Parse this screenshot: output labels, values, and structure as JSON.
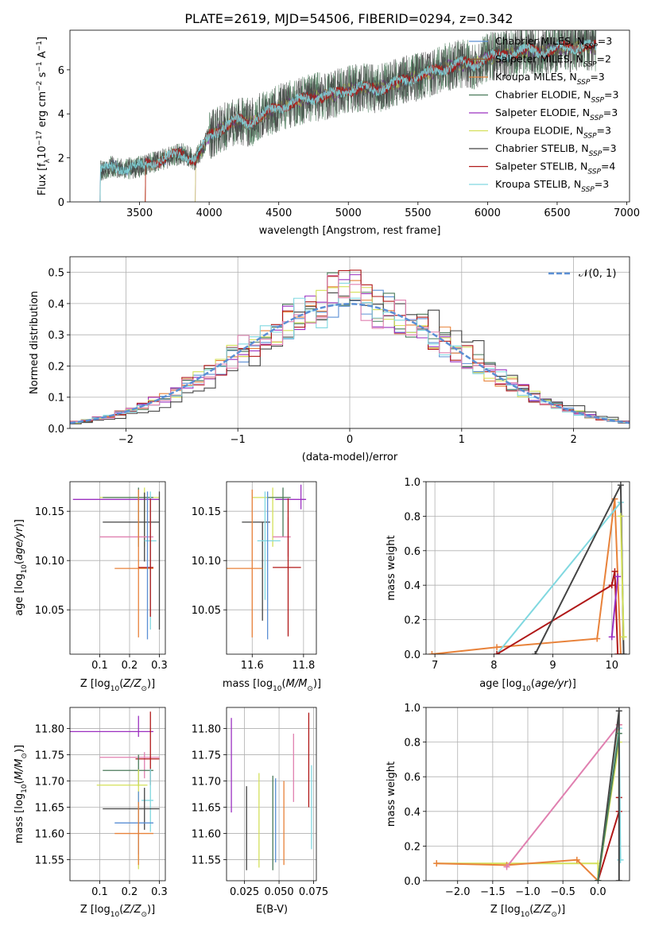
{
  "figure": {
    "title": "PLATE=2619, MJD=54506, FIBERID=0294, z=0.342"
  },
  "colors": {
    "Chabrier MILES": "#5b8fd4",
    "Salpeter MILES": "#8b5a3c",
    "Kroupa MILES": "#e8823a",
    "Chabrier ELODIE": "#4a7a5a",
    "Salpeter ELODIE": "#9b30c0",
    "Kroupa ELODIE": "#d4e05a",
    "Chabrier STELIB": "#444444",
    "Salpeter STELIB": "#b01818",
    "Kroupa STELIB": "#80d8e0",
    "Pink": "#e080b0",
    "Gauss": "#5b8fd4"
  },
  "chart_data": [
    {
      "id": "spectrum",
      "type": "line",
      "xlabel": "wavelength [Angstrom, rest frame]",
      "ylabel": "Flux [f_λ 10^-17 erg cm^-2 s^-1 A^-1]",
      "xlim": [
        3000,
        7020
      ],
      "ylim": [
        0,
        7.8
      ],
      "xticks": [
        3500,
        4000,
        4500,
        5000,
        5500,
        6000,
        6500,
        7000
      ],
      "yticks": [
        0,
        2,
        4,
        6
      ],
      "grid": false,
      "legend_position": "upper-right",
      "legend": [
        {
          "label": "Chabrier MILES, N",
          "sub": "SSP",
          "suffix": "=3",
          "color_key": "Chabrier MILES"
        },
        {
          "label": "Salpeter MILES, N",
          "sub": "SSP",
          "suffix": "=2",
          "color_key": "Salpeter MILES"
        },
        {
          "label": "Kroupa MILES, N",
          "sub": "SSP",
          "suffix": "=3",
          "color_key": "Kroupa MILES"
        },
        {
          "label": "Chabrier ELODIE, N",
          "sub": "SSP",
          "suffix": "=3",
          "color_key": "Chabrier ELODIE"
        },
        {
          "label": "Salpeter ELODIE, N",
          "sub": "SSP",
          "suffix": "=3",
          "color_key": "Salpeter ELODIE"
        },
        {
          "label": "Kroupa ELODIE, N",
          "sub": "SSP",
          "suffix": "=3",
          "color_key": "Kroupa ELODIE"
        },
        {
          "label": "Chabrier STELIB, N",
          "sub": "SSP",
          "suffix": "=3",
          "color_key": "Chabrier STELIB"
        },
        {
          "label": "Salpeter STELIB, N",
          "sub": "SSP",
          "suffix": "=4",
          "color_key": "Salpeter STELIB"
        },
        {
          "label": "Kroupa STELIB, N",
          "sub": "SSP",
          "suffix": "=3",
          "color_key": "Kroupa STELIB"
        }
      ],
      "continuum": [
        [
          3210,
          0
        ],
        [
          3215,
          1.4
        ],
        [
          3300,
          1.6
        ],
        [
          3400,
          1.5
        ],
        [
          3500,
          1.6
        ],
        [
          3600,
          1.8
        ],
        [
          3700,
          2.0
        ],
        [
          3800,
          2.2
        ],
        [
          3900,
          1.9
        ],
        [
          4000,
          3.0
        ],
        [
          4100,
          3.4
        ],
        [
          4200,
          3.7
        ],
        [
          4300,
          3.6
        ],
        [
          4400,
          4.0
        ],
        [
          4500,
          4.3
        ],
        [
          4600,
          4.5
        ],
        [
          4700,
          4.7
        ],
        [
          4800,
          4.8
        ],
        [
          4900,
          4.9
        ],
        [
          5000,
          5.1
        ],
        [
          5100,
          5.2
        ],
        [
          5200,
          5.1
        ],
        [
          5300,
          5.3
        ],
        [
          5400,
          5.5
        ],
        [
          5500,
          5.7
        ],
        [
          5600,
          5.9
        ],
        [
          5700,
          6.1
        ],
        [
          5800,
          6.3
        ],
        [
          5900,
          6.2
        ],
        [
          6000,
          6.6
        ],
        [
          6100,
          6.6
        ],
        [
          6200,
          6.8
        ],
        [
          6300,
          6.9
        ],
        [
          6400,
          6.8
        ],
        [
          6500,
          7.0
        ],
        [
          6600,
          7.0
        ],
        [
          6700,
          7.1
        ],
        [
          6780,
          7.0
        ],
        [
          6785,
          0
        ]
      ]
    },
    {
      "id": "residuals",
      "type": "histogram",
      "xlabel": "(data-model)/error",
      "ylabel": "Normed distribution",
      "xlim": [
        -2.5,
        2.5
      ],
      "ylim": [
        0,
        0.55
      ],
      "xticks": [
        -2,
        -1,
        0,
        1,
        2
      ],
      "yticks": [
        0.0,
        0.1,
        0.2,
        0.3,
        0.4,
        0.5
      ],
      "grid": true,
      "legend_position": "upper-right",
      "legend": {
        "label": "𝒩(0, 1)",
        "color_key": "Gauss",
        "style": "dashed"
      },
      "bin_width": 0.1
    },
    {
      "id": "Z-age",
      "type": "errorbar",
      "xlabel": "Z [log10(Z/Z☉)]",
      "ylabel": "age [log10(age/yr)]",
      "xlim": [
        0.0,
        0.32
      ],
      "ylim": [
        10.005,
        10.18
      ],
      "xticks": [
        0.1,
        0.2,
        0.3
      ],
      "yticks": [
        10.05,
        10.1,
        10.15
      ],
      "grid": true,
      "points": [
        {
          "color_key": "Salpeter ELODIE",
          "x": 0.23,
          "xerr": [
            0.22,
            0.07
          ],
          "y": 10.162,
          "yerr": [
            0.002,
            0.002
          ]
        },
        {
          "color_key": "Kroupa ELODIE",
          "x": 0.25,
          "xerr": [
            0.15,
            0.05
          ],
          "y": 10.164,
          "yerr": [
            0.05,
            0.01
          ]
        },
        {
          "color_key": "Chabrier ELODIE",
          "x": 0.23,
          "xerr": [
            0.12,
            0.05
          ],
          "y": 10.164,
          "yerr": [
            0.05,
            0.01
          ]
        },
        {
          "color_key": "Chabrier STELIB",
          "x": 0.25,
          "xerr": [
            0.14,
            0.05
          ],
          "y": 10.139,
          "yerr": [
            0.04,
            0.03
          ]
        },
        {
          "color_key": "Pink",
          "x": 0.27,
          "xerr": [
            0.17,
            0.01
          ],
          "y": 10.124,
          "yerr": [
            0.04,
            0.03
          ]
        },
        {
          "color_key": "Kroupa STELIB",
          "x": 0.27,
          "xerr": [
            0.02,
            0.02
          ],
          "y": 10.12,
          "yerr": [
            0.09,
            0.05
          ]
        },
        {
          "color_key": "Kroupa MILES",
          "x": 0.23,
          "xerr": [
            0.08,
            0.05
          ],
          "y": 10.092,
          "yerr": [
            0.07,
            0.08
          ]
        },
        {
          "color_key": "Salpeter STELIB",
          "x": 0.27,
          "xerr": [
            0.04,
            0.01
          ],
          "y": 10.093,
          "yerr": [
            0.05,
            0.07
          ]
        },
        {
          "color_key": "Chabrier MILES",
          "x": 0.26,
          "xerr": [
            0.0,
            0.0
          ],
          "y": 10.09,
          "yerr": [
            0.07,
            0.08
          ]
        },
        {
          "color_key": "Chabrier STELIB",
          "x": 0.3,
          "xerr": [
            0.0,
            0.0
          ],
          "y": 10.1,
          "yerr": [
            0.07,
            0.07
          ]
        }
      ]
    },
    {
      "id": "mass-age",
      "type": "errorbar",
      "xlabel": "mass [log10(M/M☉)]",
      "ylabel": "",
      "xlim": [
        11.5,
        11.85
      ],
      "ylim": [
        10.005,
        10.18
      ],
      "xticks": [
        11.6,
        11.8
      ],
      "yticks": [
        10.05,
        10.1,
        10.15
      ],
      "grid": true,
      "points": [
        {
          "color_key": "Salpeter ELODIE",
          "x": 11.79,
          "xerr": [
            0.1,
            0.02
          ],
          "y": 10.162,
          "yerr": [
            0.01,
            0.015
          ]
        },
        {
          "color_key": "Kroupa ELODIE",
          "x": 11.68,
          "xerr": [
            0.08,
            0.05
          ],
          "y": 10.164,
          "yerr": [
            0.05,
            0.01
          ]
        },
        {
          "color_key": "Chabrier ELODIE",
          "x": 11.72,
          "xerr": [
            0.06,
            0.03
          ],
          "y": 10.164,
          "yerr": [
            0.04,
            0.01
          ]
        },
        {
          "color_key": "Chabrier STELIB",
          "x": 11.64,
          "xerr": [
            0.08,
            0.03
          ],
          "y": 10.139,
          "yerr": [
            0.1,
            0.0
          ]
        },
        {
          "color_key": "Pink",
          "x": 11.74,
          "xerr": [
            0.06,
            0.01
          ],
          "y": 10.124,
          "yerr": [
            0.02,
            0.02
          ]
        },
        {
          "color_key": "Kroupa STELIB",
          "x": 11.65,
          "xerr": [
            0.03,
            0.06
          ],
          "y": 10.12,
          "yerr": [
            0.06,
            0.05
          ]
        },
        {
          "color_key": "Kroupa MILES",
          "x": 11.6,
          "xerr": [
            0.1,
            0.04
          ],
          "y": 10.092,
          "yerr": [
            0.07,
            0.08
          ]
        },
        {
          "color_key": "Salpeter STELIB",
          "x": 11.74,
          "xerr": [
            0.06,
            0.05
          ],
          "y": 10.093,
          "yerr": [
            0.07,
            0.07
          ]
        },
        {
          "color_key": "Chabrier MILES",
          "x": 11.66,
          "xerr": [
            0.0,
            0.0
          ],
          "y": 10.09,
          "yerr": [
            0.07,
            0.08
          ]
        }
      ]
    },
    {
      "id": "age-weight",
      "type": "line",
      "xlabel": "age [log10(age/yr)]",
      "ylabel": "mass weight",
      "xlim": [
        6.85,
        10.3
      ],
      "ylim": [
        0.0,
        1.0
      ],
      "xticks": [
        7,
        8,
        9,
        10
      ],
      "yticks": [
        0.0,
        0.2,
        0.4,
        0.6,
        0.8,
        1.0
      ],
      "grid": true,
      "series": [
        {
          "color_key": "Kroupa MILES",
          "x": [
            6.95,
            8.05,
            9.75,
            10.05,
            10.15
          ],
          "y": [
            0.0,
            0.04,
            0.09,
            0.9,
            0.0
          ]
        },
        {
          "color_key": "Kroupa STELIB",
          "x": [
            8.05,
            10.15,
            10.2
          ],
          "y": [
            0.0,
            0.88,
            0.1
          ]
        },
        {
          "color_key": "Salpeter STELIB",
          "x": [
            8.05,
            10.0,
            10.05,
            10.1
          ],
          "y": [
            0.0,
            0.4,
            0.48,
            0.0
          ]
        },
        {
          "color_key": "Chabrier STELIB",
          "x": [
            8.7,
            10.15,
            10.2
          ],
          "y": [
            0.0,
            0.98,
            0.0
          ]
        },
        {
          "color_key": "Salpeter ELODIE",
          "x": [
            10.0,
            10.1
          ],
          "y": [
            0.1,
            0.45
          ]
        },
        {
          "color_key": "Kroupa ELODIE",
          "x": [
            10.15,
            10.2
          ],
          "y": [
            0.8,
            0.1
          ]
        }
      ]
    },
    {
      "id": "Z-mass",
      "type": "errorbar",
      "xlabel": "Z [log10(Z/Z☉)]",
      "ylabel": "mass [log10(M/M☉)]",
      "xlim": [
        0.0,
        0.32
      ],
      "ylim": [
        11.51,
        11.84
      ],
      "xticks": [
        0.1,
        0.2,
        0.3
      ],
      "yticks": [
        11.55,
        11.6,
        11.65,
        11.7,
        11.75,
        11.8
      ],
      "grid": true,
      "points": [
        {
          "color_key": "Salpeter ELODIE",
          "x": 0.23,
          "xerr": [
            0.23,
            0.05
          ],
          "y": 11.794,
          "yerr": [
            0.01,
            0.03
          ]
        },
        {
          "color_key": "Pink",
          "x": 0.25,
          "xerr": [
            0.15,
            0.05
          ],
          "y": 11.745,
          "yerr": [
            0.04,
            0.01
          ]
        },
        {
          "color_key": "Salpeter STELIB",
          "x": 0.27,
          "xerr": [
            0.05,
            0.03
          ],
          "y": 11.742,
          "yerr": [
            0.05,
            0.09
          ]
        },
        {
          "color_key": "Chabrier ELODIE",
          "x": 0.23,
          "xerr": [
            0.12,
            0.05
          ],
          "y": 11.72,
          "yerr": [
            0.03,
            0.03
          ]
        },
        {
          "color_key": "Kroupa ELODIE",
          "x": 0.23,
          "xerr": [
            0.14,
            0.03
          ],
          "y": 11.692,
          "yerr": [
            0.16,
            0.03
          ]
        },
        {
          "color_key": "Kroupa STELIB",
          "x": 0.27,
          "xerr": [
            0.03,
            0.01
          ],
          "y": 11.663,
          "yerr": [
            0.06,
            0.06
          ]
        },
        {
          "color_key": "Chabrier STELIB",
          "x": 0.25,
          "xerr": [
            0.14,
            0.05
          ],
          "y": 11.647,
          "yerr": [
            0.04,
            0.04
          ]
        },
        {
          "color_key": "Chabrier MILES",
          "x": 0.23,
          "xerr": [
            0.08,
            0.05
          ],
          "y": 11.62,
          "yerr": [
            0.06,
            0.06
          ]
        },
        {
          "color_key": "Kroupa MILES",
          "x": 0.23,
          "xerr": [
            0.08,
            0.05
          ],
          "y": 11.6,
          "yerr": [
            0.06,
            0.06
          ]
        }
      ]
    },
    {
      "id": "ebv-mass",
      "type": "errorbar",
      "xlabel": "E(B-V)",
      "ylabel": "",
      "xlim": [
        0.012,
        0.077
      ],
      "ylim": [
        11.51,
        11.84
      ],
      "xticks": [
        0.025,
        0.05,
        0.075
      ],
      "xtick_labels": [
        "0.025",
        "0.050",
        "0.075"
      ],
      "yticks": [
        11.55,
        11.6,
        11.65,
        11.7,
        11.75,
        11.8
      ],
      "grid": true,
      "points": [
        {
          "color_key": "Salpeter ELODIE",
          "x": 0.0155,
          "y": 11.73,
          "yerr": [
            0.09,
            0.09
          ]
        },
        {
          "color_key": "Chabrier STELIB",
          "x": 0.0265,
          "y": 11.62,
          "yerr": [
            0.09,
            0.07
          ]
        },
        {
          "color_key": "Kroupa ELODIE",
          "x": 0.0355,
          "y": 11.625,
          "yerr": [
            0.09,
            0.09
          ]
        },
        {
          "color_key": "Chabrier ELODIE",
          "x": 0.0455,
          "y": 11.63,
          "yerr": [
            0.1,
            0.08
          ]
        },
        {
          "color_key": "Chabrier MILES",
          "x": 0.0475,
          "y": 11.635,
          "yerr": [
            0.09,
            0.07
          ]
        },
        {
          "color_key": "Kroupa MILES",
          "x": 0.0535,
          "y": 11.63,
          "yerr": [
            0.09,
            0.07
          ]
        },
        {
          "color_key": "Pink",
          "x": 0.0605,
          "y": 11.72,
          "yerr": [
            0.06,
            0.07
          ]
        },
        {
          "color_key": "Salpeter STELIB",
          "x": 0.0715,
          "y": 11.74,
          "yerr": [
            0.09,
            0.09
          ]
        },
        {
          "color_key": "Kroupa STELIB",
          "x": 0.0735,
          "y": 11.66,
          "yerr": [
            0.09,
            0.07
          ]
        }
      ]
    },
    {
      "id": "Z-weight",
      "type": "line",
      "xlabel": "Z [log10(Z/Z☉)]",
      "ylabel": "mass weight",
      "xlim": [
        -2.45,
        0.45
      ],
      "ylim": [
        0.0,
        1.0
      ],
      "xticks": [
        -2.0,
        -1.5,
        -1.0,
        -0.5,
        0.0
      ],
      "yticks": [
        0.0,
        0.2,
        0.4,
        0.6,
        0.8,
        1.0
      ],
      "grid": true,
      "series": [
        {
          "color_key": "Kroupa ELODIE",
          "x": [
            -2.3,
            0.0,
            0.0,
            0.3
          ],
          "y": [
            0.1,
            0.1,
            0.0,
            0.8
          ]
        },
        {
          "color_key": "Kroupa MILES",
          "x": [
            -2.3,
            -1.3,
            -0.3,
            0.0,
            0.3
          ],
          "y": [
            0.1,
            0.09,
            0.12,
            0.0,
            0.9
          ]
        },
        {
          "color_key": "Pink",
          "x": [
            -1.3,
            0.3
          ],
          "y": [
            0.08,
            0.9
          ]
        },
        {
          "color_key": "Salpeter STELIB",
          "x": [
            0.0,
            0.3,
            0.3
          ],
          "y": [
            0.0,
            0.4,
            0.48
          ]
        },
        {
          "color_key": "Kroupa STELIB",
          "x": [
            0.0,
            0.3,
            0.32
          ],
          "y": [
            0.0,
            0.88,
            0.12
          ]
        },
        {
          "color_key": "Chabrier STELIB",
          "x": [
            0.0,
            0.3,
            0.3
          ],
          "y": [
            0.0,
            0.98,
            0.0
          ]
        },
        {
          "color_key": "Chabrier ELODIE",
          "x": [
            0.0,
            0.3
          ],
          "y": [
            0.0,
            0.85
          ]
        }
      ]
    }
  ]
}
